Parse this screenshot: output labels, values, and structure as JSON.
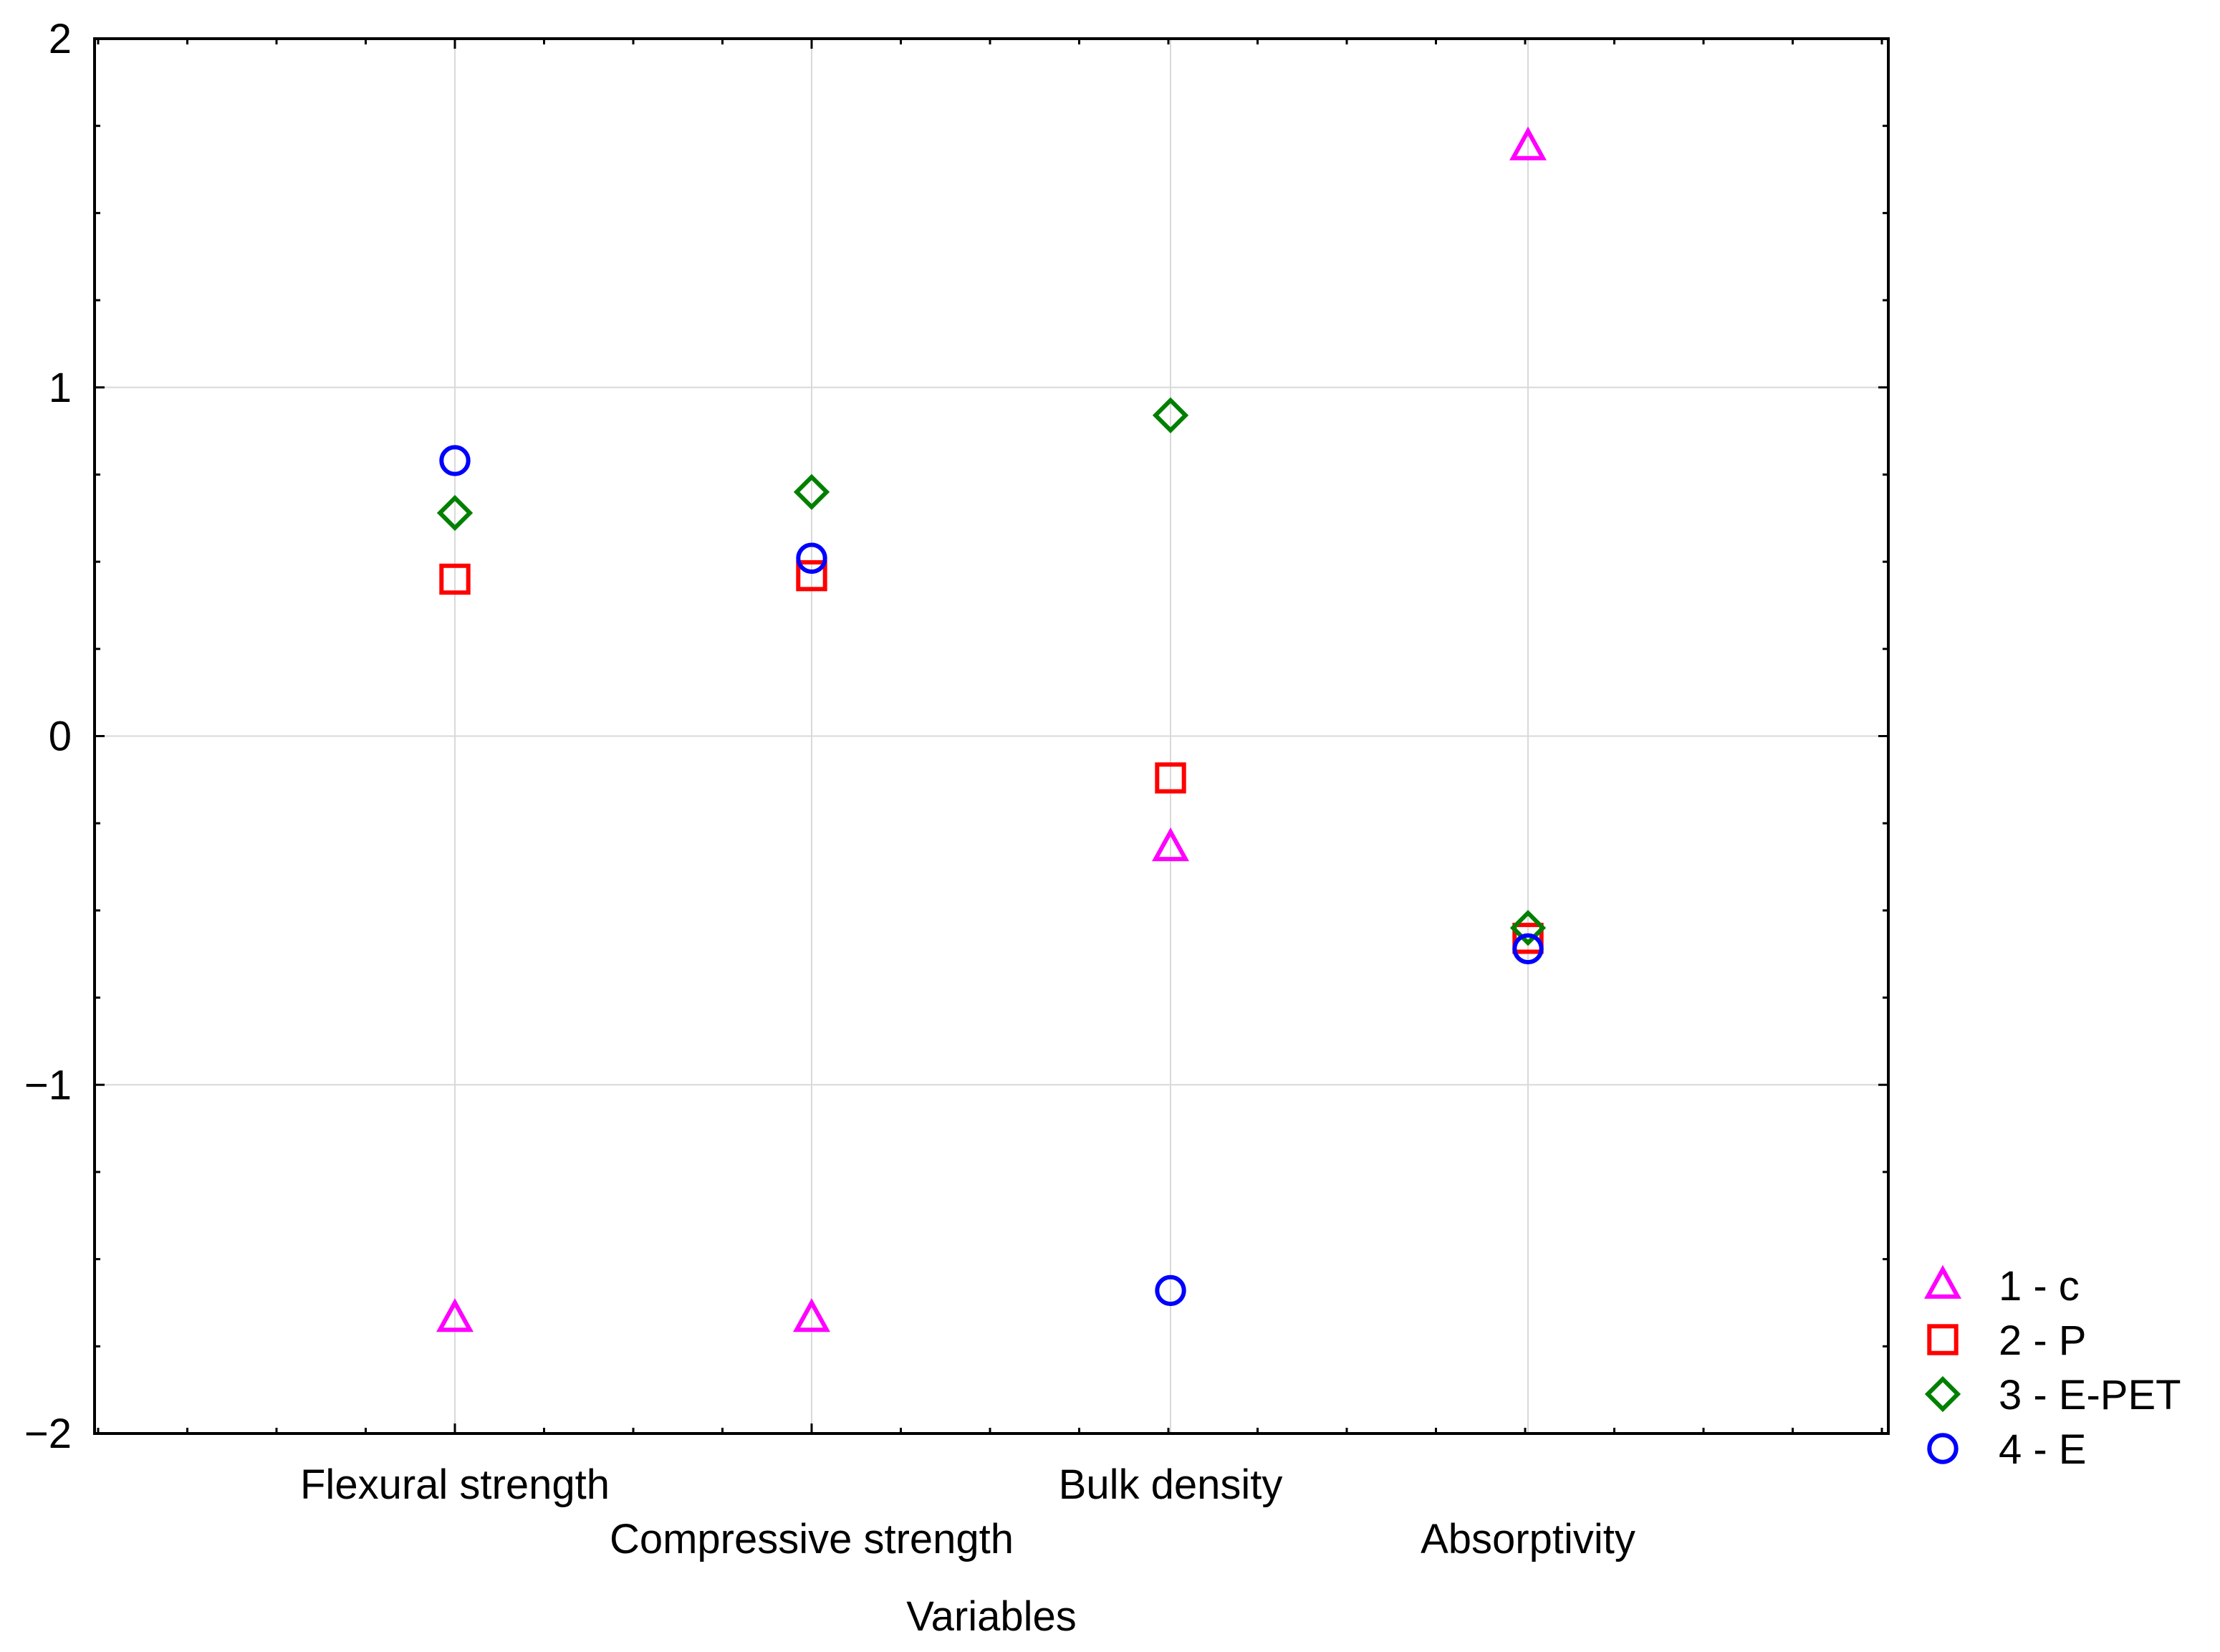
{
  "chart_data": {
    "type": "scatter",
    "title": "",
    "xlabel": "Variables",
    "ylabel": "",
    "categories": [
      "Flexural strength",
      "Compressive strength",
      "Bulk density",
      "Absorptivity"
    ],
    "ylim": [
      -2,
      2
    ],
    "yticks": [
      -2,
      -1,
      0,
      1,
      2
    ],
    "ytick_labels": [
      "−2",
      "−1",
      "0",
      "1",
      "2"
    ],
    "grid": true,
    "legend_position": "right-bottom-outside",
    "series": [
      {
        "name": "1 - c",
        "marker": "triangle",
        "color": "#ff00ff",
        "values": [
          -1.67,
          -1.67,
          -0.32,
          1.69
        ]
      },
      {
        "name": "2 - P",
        "marker": "square",
        "color": "#ff0000",
        "values": [
          0.45,
          0.46,
          -0.12,
          -0.58
        ]
      },
      {
        "name": "3 - E-PET",
        "marker": "diamond",
        "color": "#008000",
        "values": [
          0.64,
          0.7,
          0.92,
          -0.55
        ]
      },
      {
        "name": "4 - E",
        "marker": "circle",
        "color": "#0000ff",
        "values": [
          0.79,
          0.51,
          -1.59,
          -0.61
        ]
      }
    ]
  }
}
